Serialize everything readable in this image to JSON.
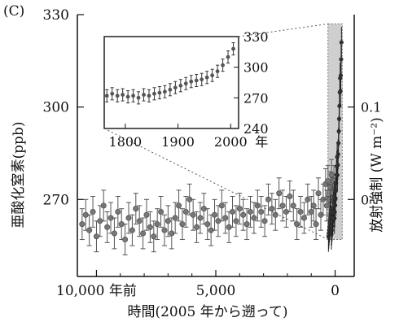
{
  "panel_label": "(C)",
  "chart_data": {
    "type": "scatter",
    "main": {
      "title": "",
      "xlabel": "時間(2005 年から遡って)",
      "x_ticks": [
        {
          "value": 10000,
          "label": "10,000 年前"
        },
        {
          "value": 5000,
          "label": "5,000"
        },
        {
          "value": 0,
          "label": "0"
        }
      ],
      "xlim": [
        10800,
        -800
      ],
      "ylabel_left": "亜酸化窒素(ppb)",
      "y_ticks_left": [
        270,
        300,
        330
      ],
      "ylim": [
        245,
        330
      ],
      "ylabel_right": "放射強制 (W m⁻²)",
      "y_ticks_right": [
        {
          "at_ppb": 270,
          "label": "0"
        },
        {
          "at_ppb": 300,
          "label": "0.1"
        }
      ],
      "series": [
        {
          "x": [
            10600,
            10450,
            10300,
            10150,
            10000,
            9850,
            9700,
            9550,
            9400,
            9250,
            9100,
            8950,
            8800,
            8650,
            8500,
            8350,
            8200,
            8050,
            7900,
            7750,
            7600,
            7450,
            7300,
            7150,
            7000,
            6850,
            6700,
            6550,
            6400,
            6250,
            6100,
            5950,
            5800,
            5650,
            5500,
            5350,
            5200,
            5050,
            4900,
            4750,
            4600,
            4450,
            4300,
            4150,
            4000,
            3850,
            3700,
            3550,
            3400,
            3250,
            3100,
            2950,
            2800,
            2650,
            2500,
            2350,
            2200,
            2050,
            1900,
            1750,
            1600,
            1450,
            1300,
            1150,
            1000,
            900,
            800,
            700,
            600,
            500,
            400,
            350,
            300,
            250,
            200,
            150,
            100,
            50,
            20
          ],
          "y": [
            262,
            265,
            260,
            266,
            258,
            263,
            268,
            261,
            264,
            259,
            266,
            262,
            257,
            264,
            260,
            267,
            263,
            259,
            265,
            261,
            258,
            262,
            266,
            260,
            263,
            259,
            264,
            268,
            262,
            266,
            270,
            265,
            261,
            264,
            267,
            262,
            260,
            265,
            263,
            268,
            264,
            261,
            266,
            263,
            267,
            265,
            262,
            266,
            264,
            268,
            266,
            263,
            270,
            267,
            265,
            272,
            268,
            266,
            271,
            268,
            262,
            266,
            264,
            270,
            266,
            268,
            262,
            272,
            265,
            270,
            275,
            268,
            276,
            270,
            274,
            278,
            272,
            276,
            270
          ],
          "y_error": 5
        }
      ]
    },
    "inset": {
      "x_ticks": [
        1800,
        1900,
        2000
      ],
      "x_unit": "年",
      "xlim": [
        1760,
        2015
      ],
      "y_ticks": [
        240,
        270,
        300,
        330
      ],
      "ylim": [
        240,
        330
      ],
      "series": [
        {
          "x": [
            1765,
            1775,
            1785,
            1795,
            1805,
            1815,
            1825,
            1835,
            1845,
            1855,
            1865,
            1875,
            1885,
            1895,
            1905,
            1915,
            1925,
            1935,
            1945,
            1955,
            1965,
            1975,
            1985,
            1995,
            2005
          ],
          "y": [
            272,
            274,
            272,
            273,
            271,
            272,
            270,
            273,
            272,
            274,
            275,
            276,
            278,
            280,
            282,
            284,
            286,
            287,
            288,
            290,
            292,
            296,
            302,
            310,
            318
          ],
          "y_error": 6
        }
      ]
    }
  }
}
